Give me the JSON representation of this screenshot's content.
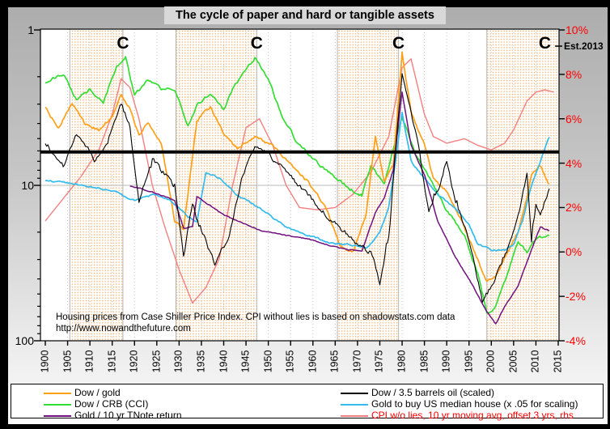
{
  "title": "The cycle of paper and hard or tangible assets",
  "annotation": {
    "line1": "Housing prices from Case Shiller Price Index. CPI without lies is based on shadowstats.com data",
    "line2": "http://www.nowandthefuture.com"
  },
  "cycle_markers": {
    "symbol": "C",
    "years": [
      1917.4,
      1947.4,
      1979.2,
      2012
    ],
    "est_label": "Est.2013"
  },
  "axes": {
    "left": {
      "scale": "log-inverted",
      "range": [
        1,
        100
      ],
      "labels": [
        {
          "text": "1",
          "value": 1
        },
        {
          "text": "10",
          "value": 10
        },
        {
          "text": "100",
          "value": 100
        }
      ]
    },
    "right": {
      "scale": "linear",
      "range": [
        -4,
        10
      ],
      "text_color": "#ff0000",
      "labels": [
        {
          "text": "10%",
          "value": 10
        },
        {
          "text": "8%",
          "value": 8
        },
        {
          "text": "6%",
          "value": 6
        },
        {
          "text": "4%",
          "value": 4
        },
        {
          "text": "2%",
          "value": 2
        },
        {
          "text": "0%",
          "value": 0
        },
        {
          "text": "-2%",
          "value": -2
        },
        {
          "text": "-4%",
          "value": -4
        }
      ]
    },
    "x": {
      "start": 1900,
      "end": 2015,
      "step": 5,
      "labels": [
        "1900",
        "1905",
        "1910",
        "1915",
        "1920",
        "1925",
        "1930",
        "1935",
        "1940",
        "1945",
        "1950",
        "1955",
        "1960",
        "1965",
        "1970",
        "1975",
        "1980",
        "1985",
        "1990",
        "1995",
        "2000",
        "2005",
        "2010",
        "2015"
      ]
    }
  },
  "reference_line": {
    "left_value": 6.1,
    "right_value_pct": 4.6
  },
  "shaded_bands_years": [
    [
      1905.5,
      1917.4
    ],
    [
      1929.3,
      1947.4
    ],
    [
      1965.5,
      1979.2
    ],
    [
      1999,
      2015.8
    ]
  ],
  "colors": {
    "band_dot": "#f0a860",
    "grid": "#c4c4c4",
    "axis": "#000000",
    "reference_line": "#000000"
  },
  "chart_data": {
    "type": "line",
    "title": "The cycle of paper and hard or tangible assets",
    "x_range": [
      1899,
      2016
    ],
    "left_axis_range_log_inverted": [
      1,
      100
    ],
    "right_axis_range_pct": [
      -4,
      10
    ],
    "grid": "vertical-5yr-dotted",
    "legend_position": "bottom",
    "series": [
      {
        "name": "Dow / gold",
        "color": "#ffa018",
        "axis": "left",
        "points": [
          [
            1900,
            3.2
          ],
          [
            1903,
            4.3
          ],
          [
            1906,
            2.9
          ],
          [
            1909,
            4.1
          ],
          [
            1912,
            4.4
          ],
          [
            1915,
            3.6
          ],
          [
            1917,
            2.6
          ],
          [
            1919,
            3.2
          ],
          [
            1921,
            4.8
          ],
          [
            1923,
            3.9
          ],
          [
            1926,
            5.3
          ],
          [
            1929,
            17
          ],
          [
            1931,
            19
          ],
          [
            1934,
            3.8
          ],
          [
            1937,
            3.1
          ],
          [
            1940,
            4.6
          ],
          [
            1943,
            5.8
          ],
          [
            1947,
            4.9
          ],
          [
            1951,
            5.6
          ],
          [
            1955,
            7.4
          ],
          [
            1959,
            9.5
          ],
          [
            1963,
            14
          ],
          [
            1966,
            24
          ],
          [
            1969,
            27
          ],
          [
            1972,
            15
          ],
          [
            1974,
            4.8
          ],
          [
            1976,
            9.5
          ],
          [
            1978,
            7.5
          ],
          [
            1980,
            1.4
          ],
          [
            1982,
            3.4
          ],
          [
            1985,
            5.5
          ],
          [
            1987,
            9
          ],
          [
            1990,
            11
          ],
          [
            1993,
            16
          ],
          [
            1996,
            26
          ],
          [
            1999,
            41
          ],
          [
            2001,
            38
          ],
          [
            2004,
            26
          ],
          [
            2006,
            20
          ],
          [
            2008,
            12
          ],
          [
            2009,
            8.5
          ],
          [
            2011,
            7.5
          ],
          [
            2013,
            9.8
          ]
        ]
      },
      {
        "name": "Dow / CRB (CCI)",
        "color": "#33dd33",
        "axis": "left",
        "points": [
          [
            1900,
            2.2
          ],
          [
            1904,
            1.9
          ],
          [
            1907,
            2.8
          ],
          [
            1910,
            2.4
          ],
          [
            1913,
            2.9
          ],
          [
            1916,
            1.7
          ],
          [
            1918,
            1.5
          ],
          [
            1920,
            2.6
          ],
          [
            1923,
            2.1
          ],
          [
            1926,
            2.4
          ],
          [
            1929,
            2.4
          ],
          [
            1932,
            4.2
          ],
          [
            1934,
            3.0
          ],
          [
            1937,
            2.6
          ],
          [
            1940,
            3.3
          ],
          [
            1942,
            2.4
          ],
          [
            1944,
            2.0
          ],
          [
            1947,
            1.5
          ],
          [
            1950,
            2.1
          ],
          [
            1953,
            3.5
          ],
          [
            1956,
            5.0
          ],
          [
            1960,
            6.8
          ],
          [
            1964,
            8.3
          ],
          [
            1968,
            10.5
          ],
          [
            1971,
            11.5
          ],
          [
            1973,
            7.6
          ],
          [
            1976,
            9.6
          ],
          [
            1980,
            3.6
          ],
          [
            1983,
            6.3
          ],
          [
            1987,
            10
          ],
          [
            1990,
            14.5
          ],
          [
            1994,
            21
          ],
          [
            1997,
            38
          ],
          [
            1999,
            66
          ],
          [
            2001,
            60
          ],
          [
            2004,
            34
          ],
          [
            2006,
            23
          ],
          [
            2008,
            27
          ],
          [
            2010,
            22
          ],
          [
            2013,
            21
          ]
        ]
      },
      {
        "name": "Gold / 10 yr TNote return",
        "color": "#70107e",
        "axis": "left",
        "points": [
          [
            1919,
            10.1
          ],
          [
            1924,
            11
          ],
          [
            1929,
            12.5
          ],
          [
            1931,
            19
          ],
          [
            1933,
            18.5
          ],
          [
            1934,
            11.8
          ],
          [
            1937,
            13.5
          ],
          [
            1940,
            15.5
          ],
          [
            1944,
            17.3
          ],
          [
            1948,
            19.5
          ],
          [
            1952,
            20.5
          ],
          [
            1956,
            21.5
          ],
          [
            1960,
            22.5
          ],
          [
            1964,
            24.5
          ],
          [
            1968,
            26
          ],
          [
            1971,
            26.5
          ],
          [
            1974,
            15
          ],
          [
            1976,
            12
          ],
          [
            1978,
            8
          ],
          [
            1980,
            2.5
          ],
          [
            1982,
            5.5
          ],
          [
            1985,
            8.5
          ],
          [
            1988,
            17
          ],
          [
            1992,
            29
          ],
          [
            1996,
            45
          ],
          [
            1999,
            65
          ],
          [
            2001,
            78
          ],
          [
            2003,
            60
          ],
          [
            2006,
            44
          ],
          [
            2009,
            26
          ],
          [
            2011,
            18.5
          ],
          [
            2013,
            19.5
          ]
        ]
      },
      {
        "name": "Dow / 3.5 barrels oil (scaled)",
        "color": "#000000",
        "axis": "left",
        "points": [
          [
            1900,
            5.5
          ],
          [
            1904,
            7.5
          ],
          [
            1907,
            4.6
          ],
          [
            1911,
            6.8
          ],
          [
            1914,
            5.2
          ],
          [
            1917,
            3.0
          ],
          [
            1919,
            4.2
          ],
          [
            1921,
            13
          ],
          [
            1924,
            6.8
          ],
          [
            1927,
            8.5
          ],
          [
            1929,
            10
          ],
          [
            1931,
            29
          ],
          [
            1933,
            13
          ],
          [
            1935,
            19
          ],
          [
            1938,
            32
          ],
          [
            1941,
            22
          ],
          [
            1944,
            9
          ],
          [
            1947,
            5.4
          ],
          [
            1950,
            6.3
          ],
          [
            1954,
            8
          ],
          [
            1958,
            11
          ],
          [
            1962,
            14.5
          ],
          [
            1966,
            18.5
          ],
          [
            1970,
            24
          ],
          [
            1973,
            27
          ],
          [
            1975,
            42
          ],
          [
            1977,
            22
          ],
          [
            1979,
            4
          ],
          [
            1980,
            1.9
          ],
          [
            1982,
            3.2
          ],
          [
            1984,
            6.5
          ],
          [
            1986,
            15
          ],
          [
            1988,
            11
          ],
          [
            1990,
            6.8
          ],
          [
            1992,
            13
          ],
          [
            1995,
            22
          ],
          [
            1998,
            55
          ],
          [
            2000,
            45
          ],
          [
            2002,
            34
          ],
          [
            2004,
            24
          ],
          [
            2006,
            16
          ],
          [
            2008,
            8.5
          ],
          [
            2009,
            23
          ],
          [
            2010,
            13
          ],
          [
            2011,
            15
          ],
          [
            2013,
            10.5
          ]
        ]
      },
      {
        "name": "Gold to buy US median house (x .05 for scaling)",
        "color": "#33bbee",
        "axis": "left",
        "points": [
          [
            1900,
            9.3
          ],
          [
            1905,
            9.6
          ],
          [
            1910,
            10.2
          ],
          [
            1915,
            10.8
          ],
          [
            1920,
            12.5
          ],
          [
            1924,
            11.5
          ],
          [
            1928,
            12.5
          ],
          [
            1932,
            16
          ],
          [
            1934,
            17
          ],
          [
            1936,
            8.2
          ],
          [
            1939,
            9
          ],
          [
            1943,
            11.5
          ],
          [
            1948,
            14
          ],
          [
            1954,
            18.5
          ],
          [
            1960,
            21.5
          ],
          [
            1964,
            23.5
          ],
          [
            1968,
            24
          ],
          [
            1972,
            25.5
          ],
          [
            1975,
            20
          ],
          [
            1977,
            14
          ],
          [
            1979,
            5.5
          ],
          [
            1980,
            3.4
          ],
          [
            1982,
            7
          ],
          [
            1985,
            9
          ],
          [
            1988,
            11.5
          ],
          [
            1992,
            14
          ],
          [
            1995,
            18
          ],
          [
            1997,
            24
          ],
          [
            2000,
            26
          ],
          [
            2003,
            26
          ],
          [
            2005,
            24
          ],
          [
            2007,
            17
          ],
          [
            2009,
            10
          ],
          [
            2011,
            7
          ],
          [
            2013,
            4.9
          ]
        ]
      },
      {
        "name": "CPI w/o lies, 10 yr moving avg, offset 3 yrs, rhs",
        "color": "#f28080",
        "legend_text_color": "#ff0000",
        "axis": "right",
        "points": [
          [
            1900,
            1.4
          ],
          [
            1904,
            2.4
          ],
          [
            1908,
            3.4
          ],
          [
            1912,
            4.6
          ],
          [
            1915,
            6.2
          ],
          [
            1917,
            7.8
          ],
          [
            1919,
            7.4
          ],
          [
            1921,
            6.0
          ],
          [
            1924,
            3.0
          ],
          [
            1927,
            1.0
          ],
          [
            1930,
            -0.8
          ],
          [
            1933,
            -2.3
          ],
          [
            1936,
            -1.6
          ],
          [
            1939,
            -0.3
          ],
          [
            1942,
            3.0
          ],
          [
            1945,
            5.6
          ],
          [
            1948,
            6.0
          ],
          [
            1951,
            4.8
          ],
          [
            1954,
            3.0
          ],
          [
            1957,
            2.0
          ],
          [
            1961,
            1.9
          ],
          [
            1965,
            2.0
          ],
          [
            1969,
            2.6
          ],
          [
            1973,
            3.6
          ],
          [
            1977,
            5.2
          ],
          [
            1980,
            8.3
          ],
          [
            1982,
            8.7
          ],
          [
            1985,
            6.2
          ],
          [
            1987,
            5.2
          ],
          [
            1990,
            4.9
          ],
          [
            1994,
            5.1
          ],
          [
            1997,
            4.8
          ],
          [
            2000,
            4.6
          ],
          [
            2003,
            4.9
          ],
          [
            2005,
            5.5
          ],
          [
            2008,
            6.8
          ],
          [
            2010,
            7.2
          ],
          [
            2012,
            7.3
          ],
          [
            2014,
            7.2
          ]
        ]
      }
    ]
  }
}
